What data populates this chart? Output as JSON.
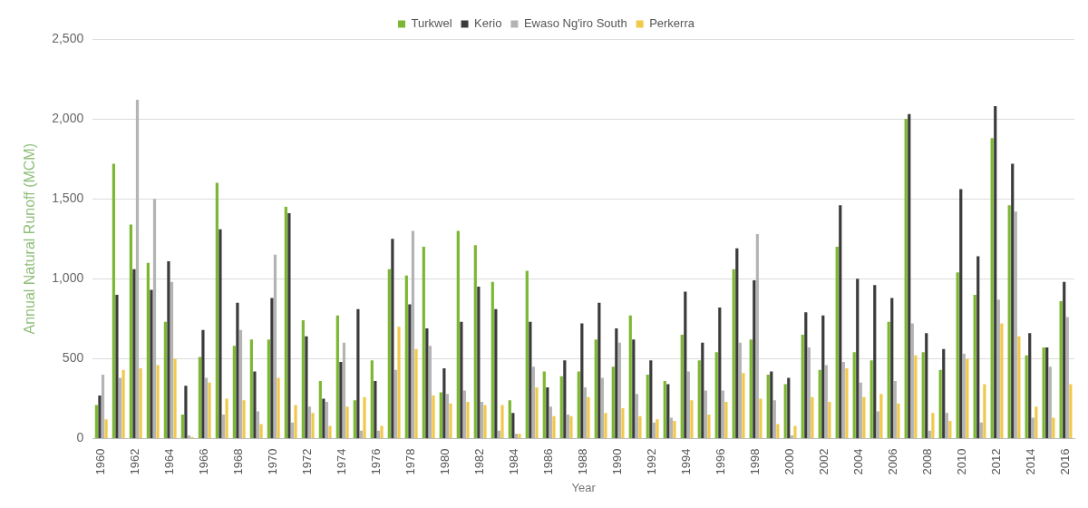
{
  "chart_data": {
    "type": "bar",
    "xlabel": "Year",
    "ylabel": "Annual Natural Runoff (MCM)",
    "categories": [
      "1960",
      null,
      "1962",
      null,
      "1964",
      null,
      "1966",
      null,
      "1968",
      null,
      "1970",
      null,
      "1972",
      null,
      "1974",
      null,
      "1976",
      null,
      "1978",
      null,
      "1980",
      null,
      "1982",
      null,
      "1984",
      null,
      "1986",
      null,
      "1988",
      null,
      "1990",
      null,
      "1992",
      null,
      "1994",
      null,
      "1996",
      null,
      "1998",
      null,
      "2000",
      null,
      "2002",
      null,
      "2004",
      null,
      "2006",
      null,
      "2008",
      null,
      "2010",
      null,
      "2012",
      null,
      "2014",
      null,
      "2016"
    ],
    "series": [
      {
        "name": "Turkwel",
        "color": "#7cb733",
        "values": [
          210,
          1720,
          1340,
          1100,
          730,
          150,
          510,
          1600,
          580,
          620,
          620,
          1450,
          740,
          360,
          770,
          240,
          490,
          1060,
          1020,
          1200,
          290,
          1300,
          1210,
          980,
          240,
          1050,
          420,
          390,
          420,
          620,
          450,
          770,
          400,
          360,
          650,
          490,
          540,
          1060,
          620,
          400,
          340,
          650,
          430,
          1200,
          540,
          490,
          730,
          2000,
          540,
          430,
          1040,
          900,
          1880,
          1460,
          520,
          570,
          860
        ]
      },
      {
        "name": "Kerio",
        "color": "#3b3b3b",
        "values": [
          270,
          900,
          1060,
          930,
          1110,
          330,
          680,
          1310,
          850,
          420,
          880,
          1410,
          640,
          250,
          480,
          810,
          360,
          1250,
          840,
          690,
          440,
          730,
          950,
          810,
          160,
          730,
          320,
          490,
          720,
          850,
          690,
          620,
          490,
          340,
          920,
          600,
          820,
          1190,
          990,
          420,
          380,
          790,
          770,
          1460,
          1000,
          960,
          880,
          2030,
          660,
          560,
          1560,
          1140,
          2080,
          1720,
          660,
          570,
          980
        ]
      },
      {
        "name": "Ewaso Ng'iro South",
        "color": "#b4b4b4",
        "values": [
          400,
          380,
          2120,
          1500,
          980,
          20,
          380,
          150,
          680,
          170,
          1150,
          100,
          200,
          230,
          600,
          50,
          50,
          430,
          1300,
          580,
          280,
          300,
          230,
          50,
          30,
          450,
          200,
          150,
          320,
          380,
          600,
          280,
          100,
          130,
          420,
          300,
          300,
          600,
          1280,
          240,
          20,
          570,
          460,
          480,
          350,
          170,
          360,
          720,
          50,
          160,
          530,
          100,
          870,
          1420,
          130,
          450,
          760
        ]
      },
      {
        "name": "Perkerra",
        "color": "#f0c84a",
        "values": [
          120,
          430,
          440,
          460,
          500,
          10,
          350,
          250,
          240,
          90,
          380,
          210,
          160,
          80,
          200,
          260,
          80,
          700,
          560,
          270,
          220,
          230,
          210,
          210,
          30,
          320,
          140,
          140,
          260,
          160,
          190,
          140,
          120,
          110,
          240,
          150,
          230,
          410,
          250,
          90,
          80,
          260,
          230,
          440,
          260,
          280,
          220,
          520,
          160,
          110,
          500,
          340,
          720,
          640,
          200,
          130,
          340
        ]
      }
    ],
    "ylim": [
      0,
      2500
    ],
    "yticks": [
      0,
      500,
      {
        "value": 1000,
        "label": "1,000"
      },
      {
        "value": 1500,
        "label": "1,500"
      },
      {
        "value": 2000,
        "label": "2,000"
      },
      {
        "value": 2500,
        "label": "2,500"
      }
    ],
    "grid": "y",
    "legend": "top"
  }
}
